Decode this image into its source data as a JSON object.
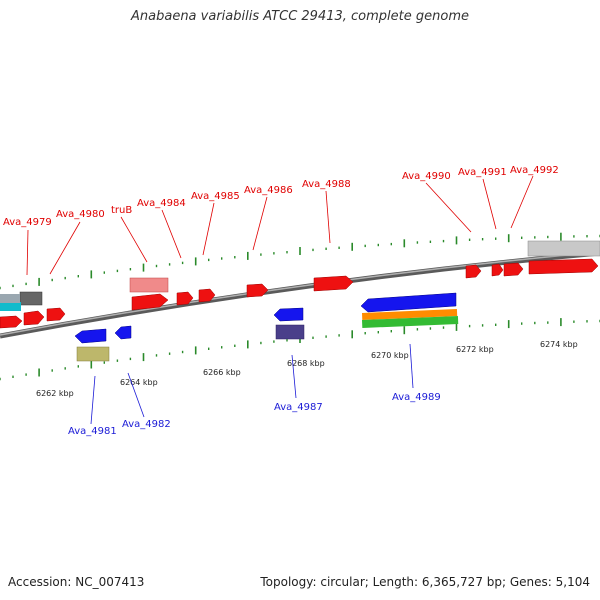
{
  "title": "Anabaena variabilis ATCC 29413, complete genome",
  "footer": {
    "accession": "Accession: NC_007413",
    "summary": "Topology: circular; Length: 6,365,727 bp; Genes: 5,104"
  },
  "scale_labels": [
    "6262 kbp",
    "6264 kbp",
    "6266 kbp",
    "6268 kbp",
    "6270 kbp",
    "6272 kbp",
    "6274 kbp"
  ],
  "forward_gene_labels": [
    "Ava_4979",
    "Ava_4980",
    "truB",
    "Ava_4984",
    "Ava_4985",
    "Ava_4986",
    "Ava_4988",
    "Ava_4990",
    "Ava_4991",
    "Ava_4992"
  ],
  "reverse_gene_labels": [
    "Ava_4981",
    "Ava_4982",
    "Ava_4987",
    "Ava_4989"
  ],
  "colors": {
    "forward_label": "#e00000",
    "reverse_label": "#1a1ad6",
    "cds_forward": "#ee1111",
    "cds_reverse": "#1515ee",
    "backbone": "#7a7a7a",
    "ticks": "#2a8a2a"
  }
}
